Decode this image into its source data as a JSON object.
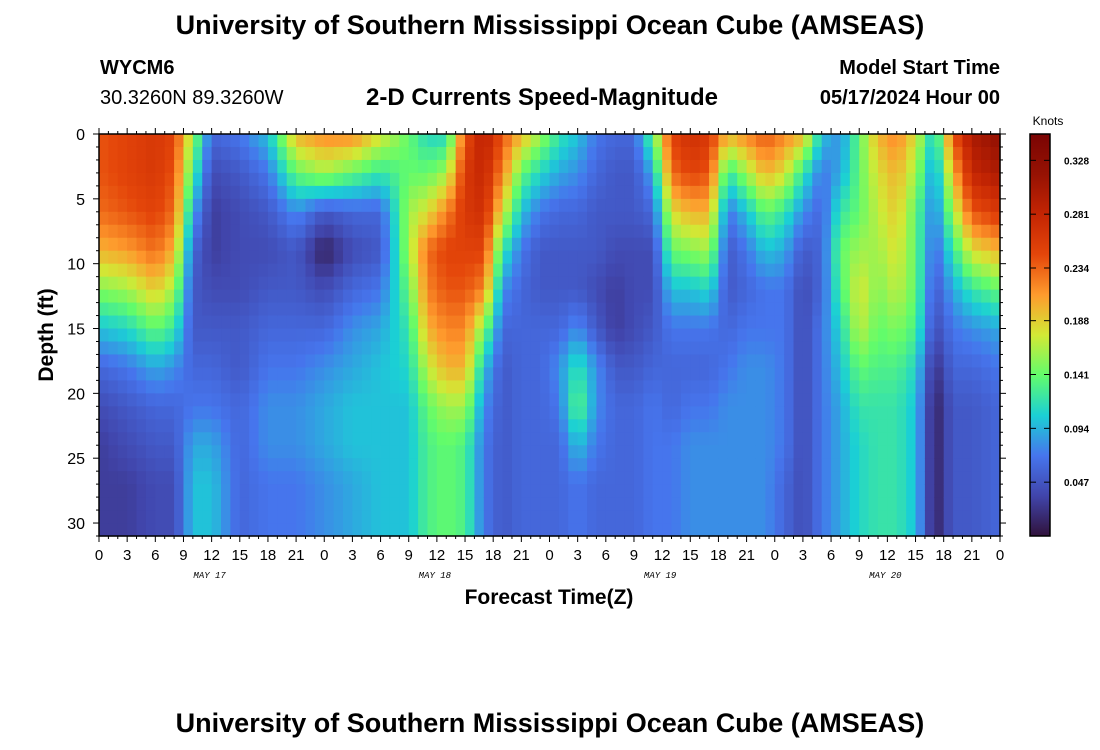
{
  "header": {
    "title": "University of Southern Mississippi Ocean Cube (AMSEAS)",
    "station": "WYCM6",
    "coords": "30.3260N  89.3260W",
    "subtitle": "2-D Currents Speed-Magnitude",
    "model_label": "Model Start Time",
    "model_time": "05/17/2024 Hour 00"
  },
  "footer": {
    "title": "University of Southern Mississippi Ocean Cube (AMSEAS)"
  },
  "chart_data": {
    "type": "heatmap",
    "title": "2-D Currents Speed-Magnitude",
    "xlabel": "Forecast Time(Z)",
    "ylabel": "Depth (ft)",
    "x_hours": [
      0,
      96
    ],
    "x_tick_labels": [
      "0",
      "3",
      "6",
      "9",
      "12",
      "15",
      "18",
      "21",
      "0",
      "3",
      "6",
      "9",
      "12",
      "15",
      "18",
      "21",
      "0",
      "3",
      "6",
      "9",
      "12",
      "15",
      "18",
      "21",
      "0",
      "3",
      "6",
      "9",
      "12",
      "15",
      "18",
      "21",
      "0"
    ],
    "date_labels": [
      {
        "hour": 12,
        "label": "MAY 17"
      },
      {
        "hour": 36,
        "label": "MAY 18"
      },
      {
        "hour": 60,
        "label": "MAY 19"
      },
      {
        "hour": 84,
        "label": "MAY 20"
      }
    ],
    "ylim": [
      0,
      31
    ],
    "y_ticks": [
      0,
      5,
      10,
      15,
      20,
      25,
      30
    ],
    "colorbar": {
      "units": "Knots",
      "min": 0.0,
      "max": 0.351,
      "tick_values": [
        0.047,
        0.094,
        0.141,
        0.188,
        0.234,
        0.281,
        0.328
      ],
      "tick_labels": [
        "0.047",
        "0.094",
        "0.141",
        "0.188",
        "0.234",
        "0.281",
        "0.328"
      ]
    },
    "depth_levels_ft": [
      0,
      3,
      6,
      9,
      12,
      15,
      18,
      21,
      24,
      27,
      31
    ],
    "time_step_hours": 1,
    "profiles": [
      {
        "hour": 0,
        "speed": [
          0.24,
          0.24,
          0.23,
          0.2,
          0.15,
          0.1,
          0.06,
          0.04,
          0.03,
          0.03,
          0.03
        ]
      },
      {
        "hour": 3,
        "speed": [
          0.25,
          0.25,
          0.24,
          0.21,
          0.16,
          0.11,
          0.07,
          0.05,
          0.04,
          0.03,
          0.03
        ]
      },
      {
        "hour": 6,
        "speed": [
          0.26,
          0.26,
          0.25,
          0.23,
          0.19,
          0.14,
          0.09,
          0.06,
          0.05,
          0.04,
          0.04
        ]
      },
      {
        "hour": 8,
        "speed": [
          0.25,
          0.24,
          0.23,
          0.2,
          0.16,
          0.12,
          0.08,
          0.06,
          0.05,
          0.04,
          0.04
        ]
      },
      {
        "hour": 10,
        "speed": [
          0.16,
          0.13,
          0.09,
          0.06,
          0.05,
          0.05,
          0.06,
          0.07,
          0.09,
          0.1,
          0.1
        ]
      },
      {
        "hour": 12,
        "speed": [
          0.06,
          0.04,
          0.03,
          0.03,
          0.04,
          0.05,
          0.06,
          0.07,
          0.09,
          0.1,
          0.1
        ]
      },
      {
        "hour": 15,
        "speed": [
          0.07,
          0.05,
          0.04,
          0.04,
          0.04,
          0.05,
          0.05,
          0.06,
          0.06,
          0.06,
          0.06
        ]
      },
      {
        "hour": 18,
        "speed": [
          0.1,
          0.07,
          0.05,
          0.04,
          0.05,
          0.06,
          0.07,
          0.08,
          0.08,
          0.07,
          0.07
        ]
      },
      {
        "hour": 21,
        "speed": [
          0.2,
          0.14,
          0.08,
          0.05,
          0.05,
          0.06,
          0.07,
          0.08,
          0.08,
          0.07,
          0.07
        ]
      },
      {
        "hour": 24,
        "speed": [
          0.22,
          0.16,
          0.05,
          0.01,
          0.04,
          0.06,
          0.08,
          0.09,
          0.09,
          0.08,
          0.08
        ]
      },
      {
        "hour": 27,
        "speed": [
          0.22,
          0.14,
          0.06,
          0.04,
          0.06,
          0.08,
          0.09,
          0.1,
          0.1,
          0.09,
          0.09
        ]
      },
      {
        "hour": 30,
        "speed": [
          0.18,
          0.12,
          0.06,
          0.05,
          0.07,
          0.09,
          0.1,
          0.1,
          0.1,
          0.1,
          0.1
        ]
      },
      {
        "hour": 33,
        "speed": [
          0.14,
          0.14,
          0.16,
          0.16,
          0.14,
          0.12,
          0.11,
          0.1,
          0.1,
          0.1,
          0.1
        ]
      },
      {
        "hour": 35,
        "speed": [
          0.11,
          0.14,
          0.18,
          0.23,
          0.22,
          0.2,
          0.17,
          0.14,
          0.13,
          0.13,
          0.13
        ]
      },
      {
        "hour": 37,
        "speed": [
          0.11,
          0.16,
          0.22,
          0.25,
          0.24,
          0.22,
          0.2,
          0.16,
          0.14,
          0.14,
          0.14
        ]
      },
      {
        "hour": 39,
        "speed": [
          0.24,
          0.26,
          0.26,
          0.25,
          0.24,
          0.22,
          0.2,
          0.16,
          0.13,
          0.13,
          0.13
        ]
      },
      {
        "hour": 41,
        "speed": [
          0.29,
          0.28,
          0.27,
          0.25,
          0.22,
          0.15,
          0.1,
          0.08,
          0.07,
          0.07,
          0.07
        ]
      },
      {
        "hour": 43,
        "speed": [
          0.24,
          0.22,
          0.18,
          0.12,
          0.08,
          0.06,
          0.05,
          0.05,
          0.05,
          0.05,
          0.05
        ]
      },
      {
        "hour": 45,
        "speed": [
          0.2,
          0.14,
          0.1,
          0.07,
          0.06,
          0.06,
          0.06,
          0.06,
          0.06,
          0.06,
          0.06
        ]
      },
      {
        "hour": 47,
        "speed": [
          0.16,
          0.11,
          0.07,
          0.05,
          0.05,
          0.06,
          0.06,
          0.06,
          0.06,
          0.06,
          0.06
        ]
      },
      {
        "hour": 49,
        "speed": [
          0.12,
          0.09,
          0.06,
          0.05,
          0.05,
          0.06,
          0.08,
          0.07,
          0.06,
          0.06,
          0.06
        ]
      },
      {
        "hour": 51,
        "speed": [
          0.1,
          0.08,
          0.06,
          0.05,
          0.05,
          0.08,
          0.12,
          0.14,
          0.1,
          0.07,
          0.07
        ]
      },
      {
        "hour": 53,
        "speed": [
          0.07,
          0.06,
          0.05,
          0.05,
          0.04,
          0.05,
          0.08,
          0.08,
          0.07,
          0.06,
          0.06
        ]
      },
      {
        "hour": 55,
        "speed": [
          0.06,
          0.05,
          0.05,
          0.04,
          0.03,
          0.03,
          0.05,
          0.06,
          0.06,
          0.06,
          0.06
        ]
      },
      {
        "hour": 57,
        "speed": [
          0.06,
          0.05,
          0.05,
          0.04,
          0.04,
          0.04,
          0.05,
          0.06,
          0.06,
          0.06,
          0.06
        ]
      },
      {
        "hour": 59,
        "speed": [
          0.14,
          0.09,
          0.06,
          0.04,
          0.04,
          0.05,
          0.06,
          0.07,
          0.07,
          0.07,
          0.07
        ]
      },
      {
        "hour": 61,
        "speed": [
          0.25,
          0.23,
          0.18,
          0.14,
          0.1,
          0.07,
          0.06,
          0.06,
          0.07,
          0.07,
          0.07
        ]
      },
      {
        "hour": 63,
        "speed": [
          0.27,
          0.25,
          0.2,
          0.15,
          0.1,
          0.07,
          0.06,
          0.07,
          0.08,
          0.08,
          0.08
        ]
      },
      {
        "hour": 65,
        "speed": [
          0.26,
          0.24,
          0.2,
          0.16,
          0.11,
          0.07,
          0.06,
          0.07,
          0.08,
          0.08,
          0.08
        ]
      },
      {
        "hour": 67,
        "speed": [
          0.2,
          0.12,
          0.07,
          0.05,
          0.05,
          0.06,
          0.07,
          0.08,
          0.08,
          0.08,
          0.08
        ]
      },
      {
        "hour": 69,
        "speed": [
          0.22,
          0.16,
          0.1,
          0.07,
          0.06,
          0.07,
          0.08,
          0.08,
          0.08,
          0.08,
          0.08
        ]
      },
      {
        "hour": 71,
        "speed": [
          0.24,
          0.2,
          0.14,
          0.1,
          0.07,
          0.07,
          0.08,
          0.08,
          0.08,
          0.08,
          0.08
        ]
      },
      {
        "hour": 73,
        "speed": [
          0.22,
          0.18,
          0.12,
          0.09,
          0.07,
          0.07,
          0.07,
          0.07,
          0.07,
          0.06,
          0.06
        ]
      },
      {
        "hour": 75,
        "speed": [
          0.2,
          0.12,
          0.08,
          0.05,
          0.04,
          0.04,
          0.04,
          0.04,
          0.04,
          0.04,
          0.04
        ]
      },
      {
        "hour": 77,
        "speed": [
          0.1,
          0.07,
          0.06,
          0.06,
          0.06,
          0.07,
          0.07,
          0.07,
          0.07,
          0.07,
          0.07
        ]
      },
      {
        "hour": 79,
        "speed": [
          0.08,
          0.09,
          0.12,
          0.14,
          0.13,
          0.11,
          0.1,
          0.09,
          0.09,
          0.09,
          0.09
        ]
      },
      {
        "hour": 81,
        "speed": [
          0.14,
          0.14,
          0.14,
          0.16,
          0.18,
          0.17,
          0.14,
          0.12,
          0.11,
          0.11,
          0.11
        ]
      },
      {
        "hour": 83,
        "speed": [
          0.2,
          0.18,
          0.17,
          0.16,
          0.15,
          0.14,
          0.13,
          0.12,
          0.12,
          0.12,
          0.12
        ]
      },
      {
        "hour": 85,
        "speed": [
          0.22,
          0.2,
          0.19,
          0.18,
          0.17,
          0.15,
          0.13,
          0.12,
          0.12,
          0.12,
          0.12
        ]
      },
      {
        "hour": 87,
        "speed": [
          0.18,
          0.16,
          0.14,
          0.14,
          0.14,
          0.13,
          0.11,
          0.1,
          0.1,
          0.1,
          0.1
        ]
      },
      {
        "hour": 89,
        "speed": [
          0.1,
          0.08,
          0.07,
          0.06,
          0.05,
          0.04,
          0.02,
          0.01,
          0.01,
          0.01,
          0.01
        ]
      },
      {
        "hour": 91,
        "speed": [
          0.24,
          0.2,
          0.16,
          0.12,
          0.09,
          0.07,
          0.06,
          0.05,
          0.05,
          0.05,
          0.05
        ]
      },
      {
        "hour": 93,
        "speed": [
          0.3,
          0.28,
          0.24,
          0.18,
          0.12,
          0.08,
          0.06,
          0.05,
          0.05,
          0.05,
          0.05
        ]
      },
      {
        "hour": 96,
        "speed": [
          0.32,
          0.3,
          0.26,
          0.2,
          0.14,
          0.09,
          0.07,
          0.06,
          0.06,
          0.06,
          0.06
        ]
      }
    ]
  }
}
